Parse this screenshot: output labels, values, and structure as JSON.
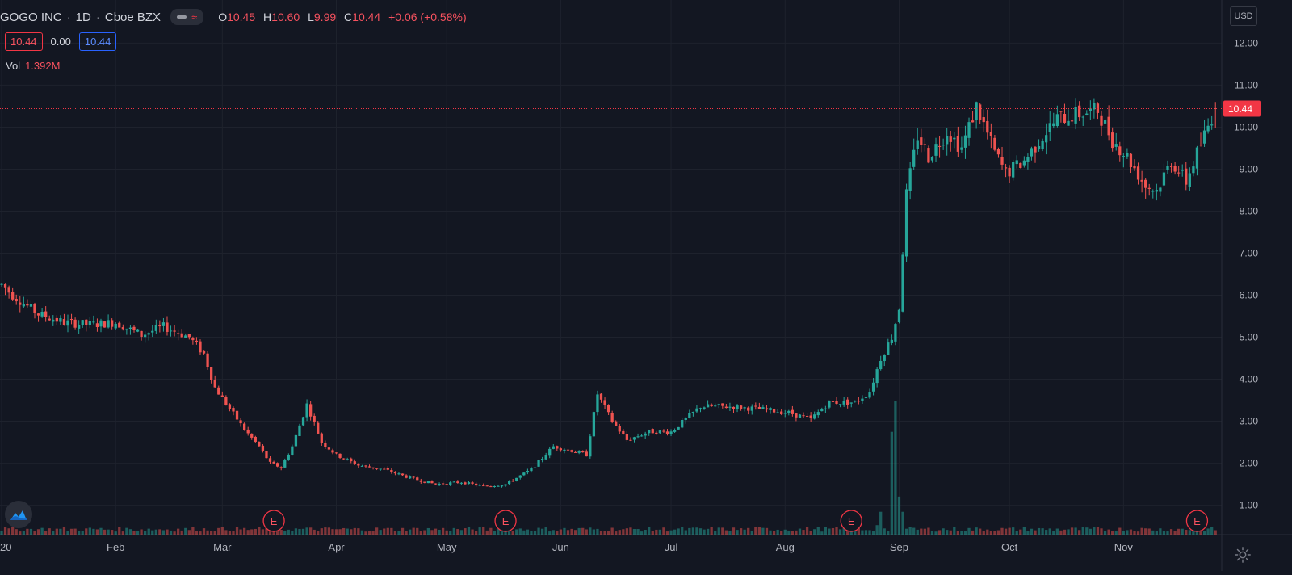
{
  "header": {
    "symbol": "GOGO INC",
    "interval": "1D",
    "exchange": "Cboe BZX",
    "open_label": "O",
    "open": "10.45",
    "high_label": "H",
    "high": "10.60",
    "low_label": "L",
    "low": "9.99",
    "close_label": "C",
    "close": "10.44",
    "change": "+0.06 (+0.58%)",
    "bid": "10.44",
    "spread": "0.00",
    "ask": "10.44",
    "vol_label": "Vol",
    "vol_value": "1.392M",
    "currency": "USD"
  },
  "colors": {
    "background": "#131722",
    "up": "#26a69a",
    "down": "#ef5350",
    "grid": "#1e222d",
    "text": "#b2b5be",
    "price_line": "#f23645"
  },
  "icons": {
    "logo": "tradingview-logo-icon",
    "settings": "gear-icon"
  },
  "chart_data": {
    "type": "candlestick",
    "y_ticks": [
      "1.00",
      "2.00",
      "3.00",
      "4.00",
      "5.00",
      "6.00",
      "7.00",
      "8.00",
      "9.00",
      "10.00",
      "11.00",
      "12.00"
    ],
    "x_ticks": [
      "20",
      "Feb",
      "Mar",
      "Apr",
      "May",
      "Jun",
      "Jul",
      "Aug",
      "Sep",
      "Oct",
      "Nov"
    ],
    "x_tick_days": [
      0,
      31,
      60,
      91,
      121,
      152,
      182,
      213,
      244,
      274,
      305
    ],
    "ylim": [
      0.3,
      12.45
    ],
    "xlim_days": [
      0,
      317
    ],
    "last_price": 10.44,
    "last_price_label": "10.44",
    "earnings_label": "E",
    "earnings_days": [
      74,
      137,
      231,
      325
    ],
    "price_anchors": [
      [
        0,
        6.25
      ],
      [
        3,
        6.0
      ],
      [
        10,
        5.55
      ],
      [
        17,
        5.35
      ],
      [
        24,
        5.3
      ],
      [
        31,
        5.35
      ],
      [
        38,
        5.05
      ],
      [
        44,
        5.25
      ],
      [
        51,
        5.0
      ],
      [
        55,
        4.6
      ],
      [
        58,
        3.8
      ],
      [
        62,
        3.3
      ],
      [
        66,
        2.8
      ],
      [
        70,
        2.4
      ],
      [
        73,
        2.0
      ],
      [
        76,
        1.9
      ],
      [
        79,
        2.4
      ],
      [
        83,
        3.4
      ],
      [
        87,
        2.5
      ],
      [
        91,
        2.2
      ],
      [
        97,
        1.95
      ],
      [
        104,
        1.85
      ],
      [
        111,
        1.65
      ],
      [
        118,
        1.5
      ],
      [
        125,
        1.55
      ],
      [
        131,
        1.45
      ],
      [
        137,
        1.5
      ],
      [
        144,
        1.85
      ],
      [
        150,
        2.4
      ],
      [
        155,
        2.3
      ],
      [
        159,
        2.2
      ],
      [
        162,
        3.65
      ],
      [
        166,
        3.0
      ],
      [
        170,
        2.55
      ],
      [
        176,
        2.75
      ],
      [
        182,
        2.75
      ],
      [
        190,
        3.35
      ],
      [
        197,
        3.35
      ],
      [
        205,
        3.3
      ],
      [
        214,
        3.2
      ],
      [
        220,
        3.05
      ],
      [
        225,
        3.45
      ],
      [
        232,
        3.45
      ],
      [
        236,
        3.7
      ],
      [
        239,
        4.5
      ],
      [
        242,
        5.0
      ],
      [
        244,
        5.7
      ],
      [
        246,
        8.4
      ],
      [
        249,
        9.8
      ],
      [
        252,
        9.3
      ],
      [
        257,
        9.9
      ],
      [
        261,
        9.5
      ],
      [
        265,
        10.5
      ],
      [
        270,
        9.4
      ],
      [
        273,
        8.9
      ],
      [
        278,
        9.2
      ],
      [
        283,
        9.8
      ],
      [
        287,
        10.2
      ],
      [
        292,
        10.3
      ],
      [
        298,
        10.4
      ],
      [
        302,
        9.7
      ],
      [
        306,
        9.3
      ],
      [
        311,
        8.6
      ],
      [
        314,
        8.5
      ],
      [
        318,
        9.2
      ],
      [
        322,
        8.7
      ],
      [
        326,
        9.6
      ],
      [
        330,
        10.44
      ]
    ],
    "volume_highlight": [
      [
        242,
        2.7
      ],
      [
        243,
        3.5
      ],
      [
        244,
        1.0
      ],
      [
        245,
        0.6
      ],
      [
        239,
        0.6
      ],
      [
        238,
        0.25
      ]
    ]
  }
}
